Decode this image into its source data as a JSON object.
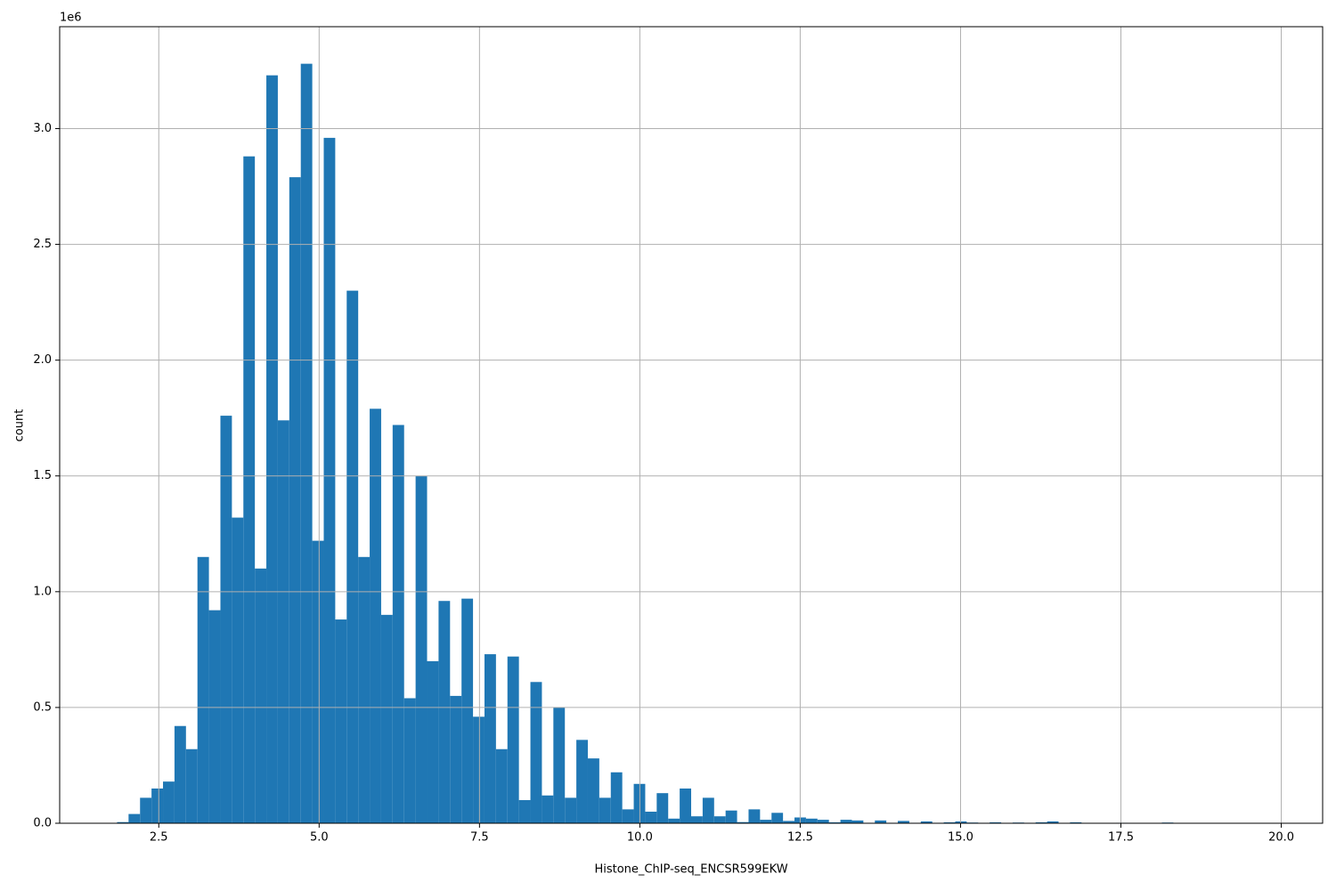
{
  "chart_data": {
    "type": "histogram",
    "x_label": "Histone_ChIP-seq_ENCSR599EKW",
    "y_label": "count",
    "y_offset_text": "1e6",
    "color": "#1f77b4",
    "grid": true,
    "xlim": [
      0.955,
      20.645
    ],
    "ylim": [
      0,
      3440000
    ],
    "xticks": [
      2.5,
      {
        "value": 5,
        "label": "5.0"
      },
      7.5,
      {
        "value": 10,
        "label": "10.0"
      },
      12.5,
      {
        "value": 15,
        "label": "15.0"
      },
      17.5,
      {
        "value": 20,
        "label": "20.0"
      }
    ],
    "yticks": [
      {
        "value": 0,
        "label": "0.0"
      },
      {
        "value": 500000,
        "label": "0.5"
      },
      {
        "value": 1000000,
        "label": "1.0"
      },
      {
        "value": 1500000,
        "label": "1.5"
      },
      {
        "value": 2000000,
        "label": "2.0"
      },
      {
        "value": 2500000,
        "label": "2.5"
      },
      {
        "value": 3000000,
        "label": "3.0"
      }
    ],
    "bins": [
      1.85,
      2.029,
      2.208,
      2.387,
      2.566,
      2.745,
      2.924,
      3.103,
      3.282,
      3.461,
      3.64,
      3.819,
      3.998,
      4.177,
      4.356,
      4.535,
      4.714,
      4.893,
      5.072,
      5.251,
      5.43,
      5.609,
      5.788,
      5.967,
      6.146,
      6.325,
      6.504,
      6.683,
      6.862,
      7.041,
      7.22,
      7.399,
      7.578,
      7.757,
      7.936,
      8.115,
      8.294,
      8.473,
      8.652,
      8.831,
      9.01,
      9.189,
      9.368,
      9.547,
      9.726,
      9.905,
      10.084,
      10.263,
      10.442,
      10.621,
      10.8,
      10.979,
      11.158,
      11.337,
      11.516,
      11.695,
      11.874,
      12.053,
      12.232,
      12.411,
      12.59,
      12.769,
      12.948,
      13.127,
      13.306,
      13.485,
      13.664,
      13.843,
      14.022,
      14.201,
      14.38,
      14.559,
      14.738,
      14.917,
      15.096,
      15.275,
      15.454,
      15.633,
      15.812,
      15.991,
      16.17,
      16.349,
      16.528,
      16.707,
      16.886,
      17.065,
      17.244,
      17.423,
      17.602,
      17.781,
      17.96,
      18.139,
      18.318,
      18.497,
      18.676,
      18.855,
      19.034,
      19.213,
      19.392,
      19.571,
      19.75
    ],
    "values": [
      5000,
      40000,
      110000,
      150000,
      180000,
      420000,
      320000,
      1150000,
      920000,
      1760000,
      1320000,
      2880000,
      1100000,
      3230000,
      1740000,
      2790000,
      3280000,
      1220000,
      2960000,
      880000,
      2300000,
      1150000,
      1790000,
      900000,
      1720000,
      540000,
      1500000,
      700000,
      960000,
      550000,
      970000,
      460000,
      730000,
      320000,
      720000,
      100000,
      610000,
      120000,
      500000,
      110000,
      360000,
      280000,
      110000,
      220000,
      60000,
      170000,
      50000,
      130000,
      20000,
      150000,
      30000,
      110000,
      30000,
      55000,
      5000,
      60000,
      15000,
      45000,
      10000,
      25000,
      20000,
      15000,
      4000,
      15000,
      12000,
      2000,
      12000,
      2000,
      10000,
      2000,
      8000,
      2000,
      4000,
      8000,
      3000,
      2000,
      4000,
      1000,
      3000,
      2000,
      4000,
      8000,
      1000,
      4000,
      1000,
      1000,
      500,
      2000,
      500,
      500,
      1000,
      3000,
      500,
      500,
      500,
      0,
      500,
      0,
      0,
      500
    ]
  }
}
